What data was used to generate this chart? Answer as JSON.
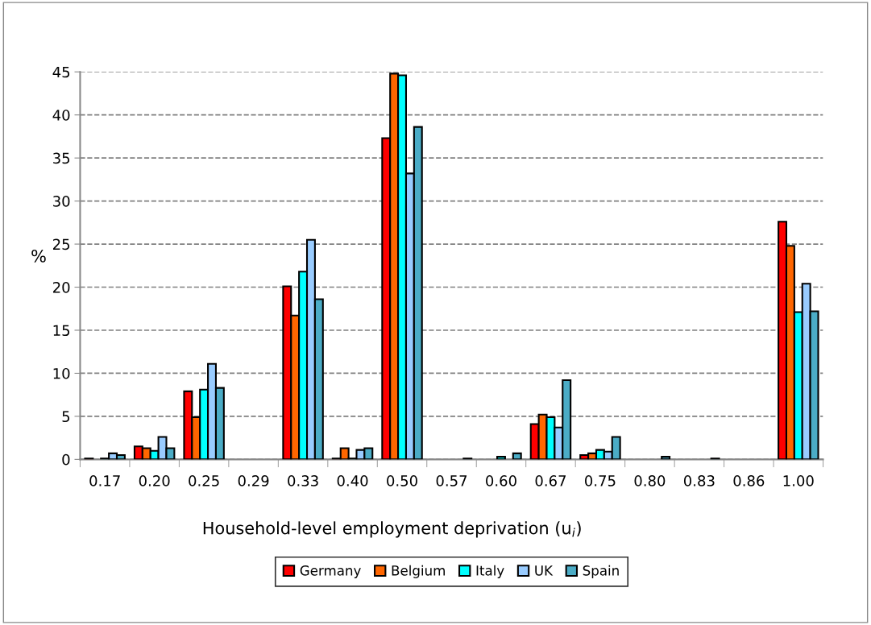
{
  "chart_data": {
    "type": "bar",
    "xlabel": "Household-level employment deprivation (u$_{i}$)",
    "ylabel": "%",
    "categories": [
      "0.17",
      "0.20",
      "0.25",
      "0.29",
      "0.33",
      "0.40",
      "0.50",
      "0.57",
      "0.60",
      "0.67",
      "0.75",
      "0.80",
      "0.83",
      "0.86",
      "1.00"
    ],
    "series": [
      {
        "name": "Germany",
        "color": "#ff0000",
        "values": [
          0.1,
          1.5,
          7.9,
          null,
          20.1,
          0.1,
          37.3,
          null,
          null,
          4.1,
          0.5,
          null,
          null,
          null,
          27.6
        ]
      },
      {
        "name": "Belgium",
        "color": "#ff6600",
        "values": [
          null,
          1.3,
          4.9,
          null,
          16.7,
          1.3,
          44.8,
          null,
          null,
          5.2,
          0.7,
          null,
          null,
          null,
          24.8
        ]
      },
      {
        "name": "Italy",
        "color": "#00ffff",
        "values": [
          0.1,
          1.0,
          8.1,
          null,
          21.8,
          0.1,
          44.6,
          null,
          0.3,
          4.9,
          1.1,
          null,
          null,
          null,
          17.1
        ]
      },
      {
        "name": "UK",
        "color": "#99ccff",
        "values": [
          0.7,
          2.6,
          11.1,
          null,
          25.5,
          1.1,
          33.2,
          null,
          null,
          3.7,
          0.9,
          null,
          null,
          null,
          20.4
        ]
      },
      {
        "name": "Spain",
        "color": "#4bacc6",
        "values": [
          0.5,
          1.3,
          8.3,
          null,
          18.6,
          1.3,
          38.6,
          0.1,
          0.7,
          9.2,
          2.6,
          0.3,
          0.1,
          null,
          17.2
        ]
      }
    ],
    "ylim": [
      0,
      45
    ],
    "yticks": [
      0,
      5,
      10,
      15,
      20,
      25,
      30,
      35,
      40,
      45
    ],
    "grid": "y",
    "legend": "bottom"
  }
}
